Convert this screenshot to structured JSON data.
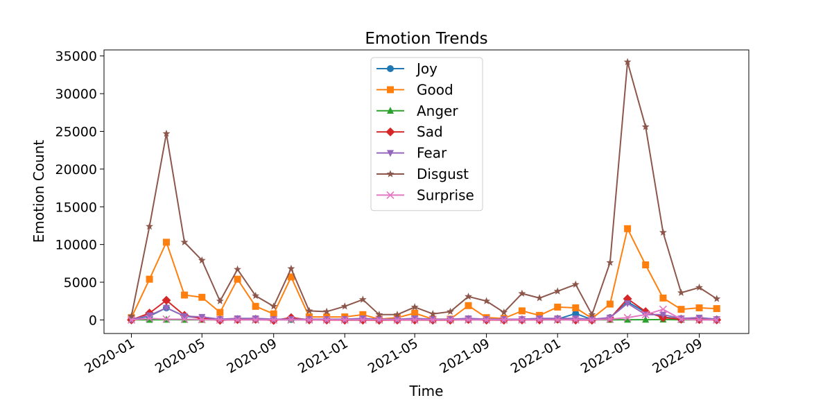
{
  "chart_data": {
    "type": "line",
    "title": "Emotion Trends",
    "xlabel": "Time",
    "ylabel": "Emotion Count",
    "ylim": [
      -1800,
      35800
    ],
    "xlim": [
      "2019-11-15",
      "2022-11-25"
    ],
    "x": [
      "2020-01",
      "2020-02",
      "2020-03",
      "2020-04",
      "2020-05",
      "2020-06",
      "2020-07",
      "2020-08",
      "2020-09",
      "2020-10",
      "2020-11",
      "2020-12",
      "2021-01",
      "2021-02",
      "2021-03",
      "2021-04",
      "2021-05",
      "2021-06",
      "2021-07",
      "2021-08",
      "2021-09",
      "2021-10",
      "2021-11",
      "2021-12",
      "2022-01",
      "2022-02",
      "2022-03",
      "2022-04",
      "2022-05",
      "2022-06",
      "2022-07",
      "2022-08",
      "2022-09",
      "2022-10"
    ],
    "x_ticks": [
      "2020-01",
      "2020-05",
      "2020-09",
      "2021-01",
      "2021-05",
      "2021-09",
      "2022-01",
      "2022-05",
      "2022-09"
    ],
    "y_ticks": [
      0,
      5000,
      10000,
      15000,
      20000,
      25000,
      30000,
      35000
    ],
    "legend_position": "upper center",
    "series": [
      {
        "name": "Joy",
        "color": "#1f77b4",
        "marker": "circle",
        "values": [
          50,
          500,
          1600,
          500,
          250,
          80,
          100,
          80,
          60,
          60,
          50,
          40,
          50,
          80,
          60,
          50,
          60,
          40,
          50,
          60,
          50,
          40,
          50,
          60,
          100,
          850,
          50,
          300,
          2400,
          1000,
          400,
          100,
          80,
          60
        ]
      },
      {
        "name": "Good",
        "color": "#ff7f0e",
        "marker": "square",
        "values": [
          300,
          5400,
          10300,
          3300,
          3000,
          1000,
          5400,
          1800,
          800,
          5700,
          400,
          400,
          400,
          700,
          100,
          300,
          900,
          100,
          100,
          1900,
          300,
          200,
          1200,
          600,
          1700,
          1600,
          200,
          2100,
          12100,
          7300,
          2900,
          1400,
          1600,
          1500
        ]
      },
      {
        "name": "Anger",
        "color": "#2ca02c",
        "marker": "triangle-up",
        "values": [
          10,
          20,
          30,
          20,
          20,
          10,
          10,
          10,
          10,
          10,
          10,
          10,
          10,
          10,
          10,
          10,
          10,
          10,
          10,
          10,
          10,
          10,
          10,
          10,
          10,
          10,
          10,
          10,
          30,
          30,
          50,
          20,
          10,
          10
        ]
      },
      {
        "name": "Sad",
        "color": "#d62728",
        "marker": "diamond",
        "values": [
          0,
          900,
          2600,
          600,
          200,
          -50,
          50,
          80,
          -60,
          300,
          0,
          -20,
          -30,
          -30,
          -40,
          -20,
          -20,
          -30,
          -30,
          60,
          -20,
          -30,
          -10,
          -10,
          100,
          -20,
          -30,
          200,
          2800,
          1100,
          300,
          100,
          50,
          0
        ]
      },
      {
        "name": "Fear",
        "color": "#9467bd",
        "marker": "triangle-down",
        "values": [
          50,
          600,
          1600,
          500,
          400,
          100,
          200,
          200,
          100,
          100,
          100,
          100,
          100,
          200,
          100,
          100,
          200,
          100,
          100,
          200,
          100,
          100,
          100,
          200,
          200,
          200,
          100,
          300,
          2200,
          700,
          700,
          200,
          300,
          100
        ]
      },
      {
        "name": "Disgust",
        "color": "#8c564b",
        "marker": "star",
        "values": [
          500,
          12400,
          24700,
          10300,
          7900,
          2500,
          6700,
          3200,
          1800,
          6800,
          1200,
          1100,
          1800,
          2700,
          700,
          700,
          1700,
          800,
          1100,
          3100,
          2500,
          1000,
          3500,
          2900,
          3800,
          4700,
          700,
          7600,
          34200,
          25600,
          11600,
          3600,
          4300,
          2800
        ]
      },
      {
        "name": "Surprise",
        "color": "#e377c2",
        "marker": "x",
        "values": [
          0,
          200,
          100,
          100,
          50,
          0,
          0,
          0,
          0,
          0,
          0,
          0,
          0,
          0,
          0,
          0,
          0,
          0,
          0,
          0,
          0,
          0,
          0,
          0,
          0,
          0,
          0,
          100,
          300,
          700,
          1400,
          100,
          0,
          0
        ]
      }
    ]
  }
}
